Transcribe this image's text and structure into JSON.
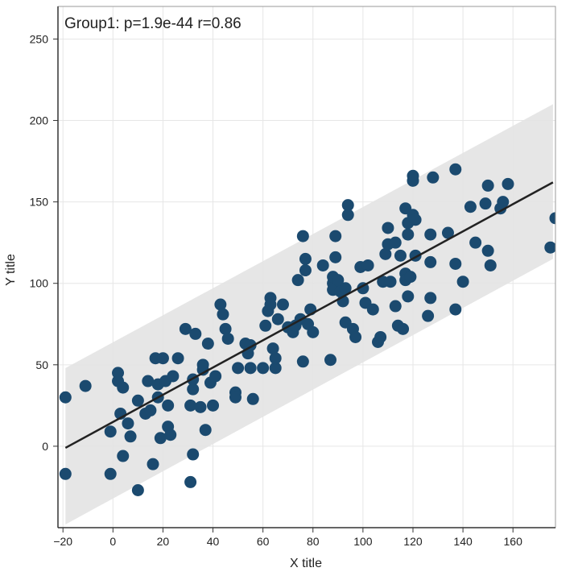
{
  "chart_data": {
    "type": "scatter",
    "annotation": "Group1: p=1.9e-44 r=0.86",
    "xlabel": "X title",
    "ylabel": "Y title",
    "xlim": [
      -22,
      177
    ],
    "ylim": [
      -50,
      270
    ],
    "x_ticks": [
      -20,
      0,
      20,
      40,
      60,
      80,
      100,
      120,
      140,
      160
    ],
    "y_ticks": [
      0,
      50,
      100,
      150,
      200,
      250
    ],
    "x_tick_labels": [
      "−20",
      "0",
      "20",
      "40",
      "60",
      "80",
      "100",
      "120",
      "140",
      "160"
    ],
    "y_tick_labels": [
      "0",
      "50",
      "100",
      "150",
      "200",
      "250"
    ],
    "grid": true,
    "colors": {
      "points": "#1b4a6f",
      "fit_line": "#222222",
      "band": "#e3e3e3",
      "grid": "#e6e6e6",
      "axis": "#333333"
    },
    "fit_line": {
      "x": [
        -19,
        176
      ],
      "y": [
        -1,
        162
      ]
    },
    "prediction_band": {
      "x": [
        -19,
        176
      ],
      "lower": [
        -48,
        115
      ],
      "upper": [
        48,
        210
      ]
    },
    "points": [
      {
        "x": -19,
        "y": 30
      },
      {
        "x": -19,
        "y": -17
      },
      {
        "x": -11,
        "y": 37
      },
      {
        "x": -1,
        "y": 9
      },
      {
        "x": -1,
        "y": -17
      },
      {
        "x": 2,
        "y": 40
      },
      {
        "x": 2,
        "y": 45
      },
      {
        "x": 3,
        "y": 20
      },
      {
        "x": 4,
        "y": 36
      },
      {
        "x": 4,
        "y": -6
      },
      {
        "x": 6,
        "y": 14
      },
      {
        "x": 7,
        "y": 6
      },
      {
        "x": 10,
        "y": 28
      },
      {
        "x": 10,
        "y": -27
      },
      {
        "x": 13,
        "y": 20
      },
      {
        "x": 14,
        "y": 40
      },
      {
        "x": 15,
        "y": 22
      },
      {
        "x": 16,
        "y": -11
      },
      {
        "x": 17,
        "y": 54
      },
      {
        "x": 18,
        "y": 38
      },
      {
        "x": 18,
        "y": 30
      },
      {
        "x": 19,
        "y": 5
      },
      {
        "x": 20,
        "y": 54
      },
      {
        "x": 21,
        "y": 40
      },
      {
        "x": 22,
        "y": 25
      },
      {
        "x": 22,
        "y": 12
      },
      {
        "x": 23,
        "y": 7
      },
      {
        "x": 24,
        "y": 43
      },
      {
        "x": 26,
        "y": 54
      },
      {
        "x": 29,
        "y": 72
      },
      {
        "x": 31,
        "y": 25
      },
      {
        "x": 31,
        "y": -22
      },
      {
        "x": 32,
        "y": 35
      },
      {
        "x": 32,
        "y": 41
      },
      {
        "x": 32,
        "y": -5
      },
      {
        "x": 33,
        "y": 69
      },
      {
        "x": 35,
        "y": 24
      },
      {
        "x": 36,
        "y": 47
      },
      {
        "x": 36,
        "y": 50
      },
      {
        "x": 37,
        "y": 10
      },
      {
        "x": 38,
        "y": 63
      },
      {
        "x": 39,
        "y": 39
      },
      {
        "x": 40,
        "y": 25
      },
      {
        "x": 41,
        "y": 43
      },
      {
        "x": 43,
        "y": 87
      },
      {
        "x": 44,
        "y": 81
      },
      {
        "x": 45,
        "y": 72
      },
      {
        "x": 46,
        "y": 66
      },
      {
        "x": 49,
        "y": 33
      },
      {
        "x": 49,
        "y": 30
      },
      {
        "x": 50,
        "y": 48
      },
      {
        "x": 53,
        "y": 63
      },
      {
        "x": 54,
        "y": 57
      },
      {
        "x": 55,
        "y": 48
      },
      {
        "x": 55,
        "y": 62
      },
      {
        "x": 56,
        "y": 29
      },
      {
        "x": 60,
        "y": 48
      },
      {
        "x": 61,
        "y": 74
      },
      {
        "x": 62,
        "y": 83
      },
      {
        "x": 63,
        "y": 91
      },
      {
        "x": 63,
        "y": 87
      },
      {
        "x": 64,
        "y": 60
      },
      {
        "x": 65,
        "y": 48
      },
      {
        "x": 65,
        "y": 54
      },
      {
        "x": 66,
        "y": 78
      },
      {
        "x": 68,
        "y": 87
      },
      {
        "x": 70,
        "y": 73
      },
      {
        "x": 72,
        "y": 70
      },
      {
        "x": 73,
        "y": 74
      },
      {
        "x": 74,
        "y": 102
      },
      {
        "x": 75,
        "y": 78
      },
      {
        "x": 76,
        "y": 129
      },
      {
        "x": 76,
        "y": 52
      },
      {
        "x": 77,
        "y": 115
      },
      {
        "x": 77,
        "y": 108
      },
      {
        "x": 78,
        "y": 75
      },
      {
        "x": 79,
        "y": 84
      },
      {
        "x": 80,
        "y": 70
      },
      {
        "x": 84,
        "y": 111
      },
      {
        "x": 87,
        "y": 53
      },
      {
        "x": 88,
        "y": 100
      },
      {
        "x": 88,
        "y": 104
      },
      {
        "x": 88,
        "y": 96
      },
      {
        "x": 89,
        "y": 129
      },
      {
        "x": 89,
        "y": 116
      },
      {
        "x": 90,
        "y": 102
      },
      {
        "x": 91,
        "y": 95
      },
      {
        "x": 92,
        "y": 89
      },
      {
        "x": 93,
        "y": 97
      },
      {
        "x": 93,
        "y": 76
      },
      {
        "x": 94,
        "y": 148
      },
      {
        "x": 94,
        "y": 142
      },
      {
        "x": 96,
        "y": 72
      },
      {
        "x": 97,
        "y": 67
      },
      {
        "x": 99,
        "y": 110
      },
      {
        "x": 100,
        "y": 97
      },
      {
        "x": 101,
        "y": 88
      },
      {
        "x": 102,
        "y": 111
      },
      {
        "x": 104,
        "y": 84
      },
      {
        "x": 106,
        "y": 64
      },
      {
        "x": 107,
        "y": 67
      },
      {
        "x": 108,
        "y": 101
      },
      {
        "x": 109,
        "y": 118
      },
      {
        "x": 110,
        "y": 124
      },
      {
        "x": 110,
        "y": 134
      },
      {
        "x": 111,
        "y": 101
      },
      {
        "x": 113,
        "y": 86
      },
      {
        "x": 113,
        "y": 125
      },
      {
        "x": 114,
        "y": 74
      },
      {
        "x": 115,
        "y": 117
      },
      {
        "x": 116,
        "y": 72
      },
      {
        "x": 117,
        "y": 146
      },
      {
        "x": 117,
        "y": 106
      },
      {
        "x": 117,
        "y": 102
      },
      {
        "x": 118,
        "y": 137
      },
      {
        "x": 118,
        "y": 130
      },
      {
        "x": 118,
        "y": 92
      },
      {
        "x": 119,
        "y": 104
      },
      {
        "x": 120,
        "y": 163
      },
      {
        "x": 120,
        "y": 166
      },
      {
        "x": 120,
        "y": 142
      },
      {
        "x": 121,
        "y": 139
      },
      {
        "x": 121,
        "y": 117
      },
      {
        "x": 126,
        "y": 80
      },
      {
        "x": 127,
        "y": 91
      },
      {
        "x": 127,
        "y": 113
      },
      {
        "x": 128,
        "y": 165
      },
      {
        "x": 127,
        "y": 130
      },
      {
        "x": 134,
        "y": 131
      },
      {
        "x": 137,
        "y": 112
      },
      {
        "x": 137,
        "y": 84
      },
      {
        "x": 140,
        "y": 101
      },
      {
        "x": 137,
        "y": 170
      },
      {
        "x": 143,
        "y": 147
      },
      {
        "x": 145,
        "y": 125
      },
      {
        "x": 149,
        "y": 149
      },
      {
        "x": 150,
        "y": 160
      },
      {
        "x": 150,
        "y": 120
      },
      {
        "x": 151,
        "y": 111
      },
      {
        "x": 155,
        "y": 146
      },
      {
        "x": 156,
        "y": 150
      },
      {
        "x": 158,
        "y": 161
      },
      {
        "x": 175,
        "y": 122
      },
      {
        "x": 177,
        "y": 140
      }
    ]
  }
}
